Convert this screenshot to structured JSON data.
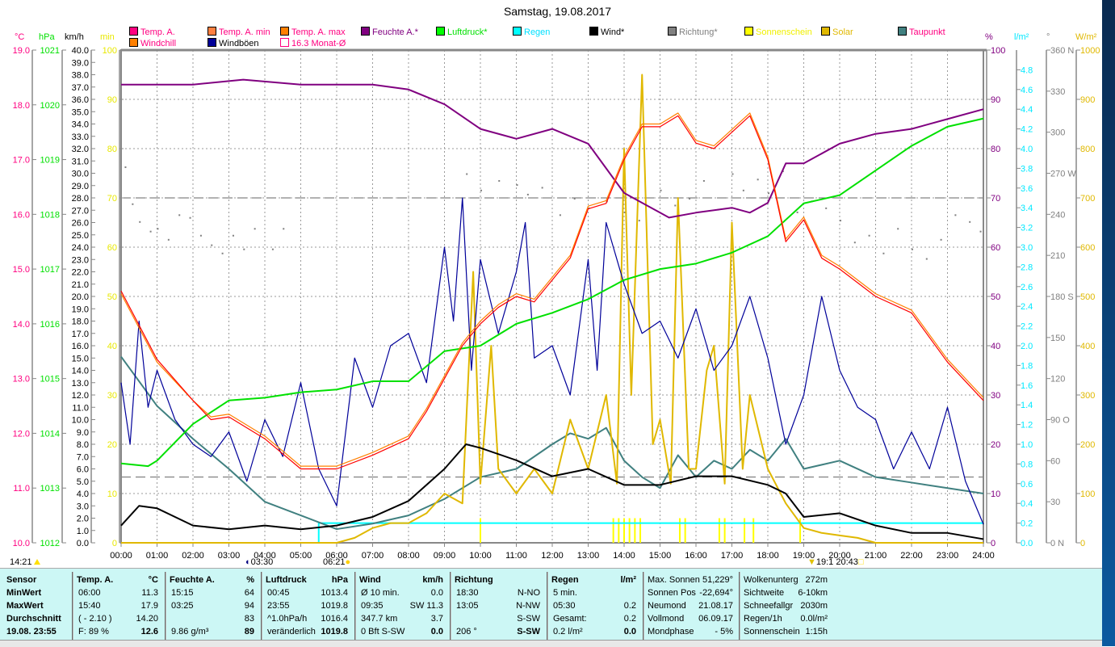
{
  "title": "Samstag, 19.08.2017",
  "units": {
    "temp": "°C",
    "hpa": "hPa",
    "kmh": "km/h",
    "min": "min",
    "pct": "%",
    "rain": "l/m²",
    "deg": "°",
    "wm2": "W/m²"
  },
  "legend": [
    {
      "label": "Temp. A.",
      "swatch": "#ff0080",
      "text": "#ff0080"
    },
    {
      "label": "Temp. A. min",
      "swatch": "#ff8040",
      "text": "#ff0080"
    },
    {
      "label": "Temp. A. max",
      "swatch": "#ff8000",
      "text": "#ff0080"
    },
    {
      "label": "Feuchte A.*",
      "swatch": "#800080",
      "text": "#800080"
    },
    {
      "label": "Luftdruck*",
      "swatch": "#00ff00",
      "text": "#00e000"
    },
    {
      "label": "Regen",
      "swatch": "#00ffff",
      "text": "#00e0ff"
    },
    {
      "label": "Wind*",
      "swatch": "#000000",
      "text": "#000000"
    },
    {
      "label": "Richtung*",
      "swatch": "#808080",
      "text": "#808080"
    },
    {
      "label": "Sonnenschein",
      "swatch": "#ffff00",
      "text": "#f0f000"
    },
    {
      "label": "Solar",
      "swatch": "#e0b800",
      "text": "#e0b800"
    },
    {
      "label": "Taupunkt",
      "swatch": "#408080",
      "text": "#ff0080"
    },
    {
      "label": "Windchill",
      "swatch": "#ff8000",
      "text": "#ff0080"
    },
    {
      "label": "Windböen",
      "swatch": "#000099",
      "text": "#000000"
    },
    {
      "label": "16.3 Monat-Ø",
      "swatch": "#ffffff",
      "text": "#ff0080"
    }
  ],
  "markers": {
    "left_time": "14:21",
    "moon": "03:30",
    "sunrise": "06:21",
    "sunset_a": "19:1",
    "sunset_b": "20:43"
  },
  "chart_data": {
    "type": "line",
    "title": "Samstag, 19.08.2017",
    "x_ticks": [
      "00:00",
      "01:00",
      "02:00",
      "03:00",
      "04:00",
      "05:00",
      "06:00",
      "07:00",
      "08:00",
      "09:00",
      "10:00",
      "11:00",
      "12:00",
      "13:00",
      "14:00",
      "15:00",
      "16:00",
      "17:00",
      "18:00",
      "19:00",
      "20:00",
      "21:00",
      "22:00",
      "23:00",
      "24:00"
    ],
    "xlim": [
      0,
      24
    ],
    "axes": {
      "temp": {
        "min": 10,
        "max": 19,
        "step": 1,
        "dec": 1,
        "color": "#ff0080"
      },
      "hpa": {
        "min": 1012,
        "max": 1021,
        "step": 1,
        "dec": 0,
        "color": "#00e000"
      },
      "kmh": {
        "min": 0,
        "max": 40,
        "step": 1,
        "dec": 1,
        "color": "#000000"
      },
      "min": {
        "min": 0,
        "max": 100,
        "step": 10,
        "dec": 0,
        "color": "#e8e800"
      },
      "pct": {
        "min": 0,
        "max": 100,
        "step": 10,
        "dec": 0,
        "color": "#800080"
      },
      "rain": {
        "min": 0,
        "max": 5,
        "step": 0.2,
        "dec": 1,
        "color": "#00e8ff"
      },
      "deg": {
        "min": 0,
        "max": 360,
        "step": 30,
        "dec": 0,
        "color": "#808080",
        "dirs": {
          "0": "N",
          "90": "O",
          "180": "S",
          "270": "W",
          "360": "N"
        }
      },
      "wm2": {
        "min": 0,
        "max": 1000,
        "step": 100,
        "dec": 0,
        "color": "#e0b800"
      }
    },
    "reference_lines_c": [
      16.3,
      11.2
    ],
    "series": [
      {
        "name": "Temp. A.",
        "axis": "temp",
        "color": "#ff0000",
        "x": [
          0,
          1,
          2,
          2.5,
          3,
          4,
          5,
          6,
          7,
          8,
          8.5,
          9,
          9.5,
          10,
          10.5,
          11,
          11.5,
          12,
          12.5,
          13,
          13.5,
          14,
          14.5,
          15,
          15.5,
          16,
          16.5,
          17,
          17.5,
          18,
          18.5,
          19,
          19.5,
          20,
          21,
          22,
          23,
          24
        ],
        "y": [
          14.6,
          13.35,
          12.6,
          12.25,
          12.3,
          11.9,
          11.35,
          11.35,
          11.6,
          11.9,
          12.4,
          13.0,
          13.6,
          14.0,
          14.3,
          14.5,
          14.4,
          14.8,
          15.2,
          16.1,
          16.2,
          17.0,
          17.6,
          17.6,
          17.8,
          17.3,
          17.2,
          17.5,
          17.8,
          17.0,
          15.5,
          15.9,
          15.2,
          15.0,
          14.5,
          14.2,
          13.3,
          12.6
        ]
      },
      {
        "name": "Temp. A. max",
        "axis": "temp",
        "color": "#ff8000",
        "offset": 0.05,
        "x": [
          0,
          1,
          2,
          2.5,
          3,
          4,
          5,
          6,
          7,
          8,
          8.5,
          9,
          9.5,
          10,
          10.5,
          11,
          11.5,
          12,
          12.5,
          13,
          13.5,
          14,
          14.5,
          15,
          15.5,
          16,
          16.5,
          17,
          17.5,
          18,
          18.5,
          19,
          19.5,
          20,
          21,
          22,
          23,
          24
        ],
        "y": [
          14.55,
          13.3,
          12.6,
          12.3,
          12.35,
          11.95,
          11.4,
          11.4,
          11.65,
          11.95,
          12.45,
          13.05,
          13.65,
          14.05,
          14.35,
          14.55,
          14.45,
          14.85,
          15.25,
          16.15,
          16.25,
          17.05,
          17.65,
          17.65,
          17.85,
          17.35,
          17.25,
          17.55,
          17.85,
          17.05,
          15.55,
          15.95,
          15.25,
          15.05,
          14.55,
          14.25,
          13.35,
          12.65
        ]
      },
      {
        "name": "Feuchte A.",
        "axis": "pct",
        "color": "#800080",
        "x": [
          0,
          2,
          3.4,
          5,
          7,
          8,
          9,
          10,
          11,
          12,
          13,
          13.5,
          14,
          15,
          15.25,
          16,
          17,
          17.5,
          18,
          18.5,
          19,
          20,
          21,
          22,
          23,
          24
        ],
        "y": [
          93,
          93,
          94,
          93,
          93,
          92,
          89,
          84,
          82,
          84,
          81,
          76,
          71,
          67,
          66,
          67,
          68,
          67,
          69,
          77,
          77,
          81,
          83,
          84,
          86,
          88
        ]
      },
      {
        "name": "Luftdruck",
        "axis": "hpa",
        "color": "#00e000",
        "x": [
          0,
          0.75,
          1,
          2,
          3,
          4,
          5,
          6,
          7,
          8,
          9,
          10,
          11,
          12,
          13,
          14,
          15,
          16,
          17,
          18,
          19,
          20,
          21,
          22,
          23,
          24
        ],
        "y": [
          1013.45,
          1013.4,
          1013.5,
          1014.17,
          1014.6,
          1014.65,
          1014.75,
          1014.8,
          1014.95,
          1014.95,
          1015.5,
          1015.6,
          1016.0,
          1016.2,
          1016.45,
          1016.8,
          1017.0,
          1017.1,
          1017.3,
          1017.6,
          1018.2,
          1018.35,
          1018.8,
          1019.25,
          1019.6,
          1019.75
        ]
      },
      {
        "name": "Taupunkt",
        "axis": "temp",
        "color": "#408080",
        "x": [
          0,
          1,
          2,
          3,
          4,
          5,
          6,
          7,
          8,
          9,
          10,
          11,
          12,
          12.5,
          13,
          13.5,
          14,
          14.5,
          15,
          15.5,
          16,
          16.5,
          17,
          17.5,
          18,
          18.5,
          19,
          20,
          21,
          22,
          23,
          24
        ],
        "y": [
          13.4,
          12.5,
          11.9,
          11.35,
          10.75,
          10.5,
          10.25,
          10.35,
          10.5,
          10.8,
          11.2,
          11.35,
          11.8,
          12.0,
          11.9,
          12.1,
          11.5,
          11.2,
          11.0,
          11.6,
          11.2,
          11.5,
          11.35,
          11.7,
          11.5,
          11.9,
          11.35,
          11.5,
          11.2,
          11.1,
          11.0,
          10.9
        ]
      },
      {
        "name": "Wind",
        "axis": "kmh",
        "color": "#000000",
        "x": [
          0,
          0.5,
          1,
          2,
          3,
          4,
          5,
          6,
          7,
          8,
          9,
          9.6,
          10,
          11,
          12,
          13,
          14,
          15,
          16,
          17,
          18,
          18.5,
          19,
          20,
          21,
          22,
          23,
          24
        ],
        "y": [
          1.4,
          3.0,
          2.8,
          1.4,
          1.1,
          1.4,
          1.1,
          1.4,
          2.1,
          3.4,
          6.0,
          8.0,
          7.7,
          6.7,
          5.4,
          6.0,
          4.7,
          4.7,
          5.4,
          5.4,
          4.7,
          4.0,
          2.1,
          2.4,
          1.4,
          0.8,
          0.8,
          0.3
        ]
      },
      {
        "name": "Windböen",
        "axis": "kmh",
        "color": "#000099",
        "x": [
          0,
          0.25,
          0.5,
          0.75,
          1,
          1.5,
          2,
          2.5,
          3,
          3.5,
          4,
          4.5,
          5,
          5.5,
          6,
          6.5,
          7,
          7.5,
          8,
          8.5,
          9,
          9.25,
          9.5,
          9.75,
          10,
          10.5,
          11,
          11.25,
          11.5,
          12,
          12.5,
          13,
          13.25,
          13.5,
          14,
          14.5,
          15,
          15.5,
          16,
          16.5,
          17,
          17.5,
          18,
          18.5,
          19,
          19.5,
          20,
          20.5,
          21,
          21.5,
          22,
          22.5,
          23,
          23.5,
          24
        ],
        "y": [
          13,
          8,
          18,
          11,
          14,
          10,
          8,
          7,
          9,
          5,
          10,
          7,
          13,
          6,
          3,
          15,
          11,
          16,
          17,
          13,
          24,
          18,
          28,
          14,
          23,
          17,
          22,
          26,
          15,
          16,
          12,
          23,
          14,
          26,
          21,
          17,
          18,
          15,
          19,
          14,
          16,
          20,
          15,
          8,
          12,
          20,
          14,
          11,
          10,
          6,
          9,
          6,
          11,
          5,
          1.5
        ]
      },
      {
        "name": "Solar",
        "axis": "wm2",
        "color": "#e0b800",
        "x": [
          0,
          6,
          6.5,
          7,
          7.5,
          8,
          8.5,
          9,
          9.5,
          9.8,
          10,
          10.3,
          10.5,
          11,
          11.5,
          12,
          12.5,
          13,
          13.5,
          13.8,
          14,
          14.2,
          14.5,
          14.8,
          15,
          15.3,
          15.5,
          15.8,
          16,
          16.3,
          16.5,
          16.8,
          17,
          17.3,
          17.5,
          18,
          18.5,
          19,
          19.5,
          20,
          20.5,
          21,
          24
        ],
        "y": [
          0,
          0,
          10,
          30,
          40,
          40,
          60,
          100,
          80,
          550,
          120,
          400,
          150,
          100,
          150,
          100,
          250,
          150,
          300,
          120,
          800,
          300,
          950,
          200,
          250,
          120,
          700,
          150,
          150,
          350,
          400,
          120,
          650,
          150,
          300,
          150,
          80,
          30,
          20,
          15,
          10,
          0,
          0
        ]
      },
      {
        "name": "Regen",
        "axis": "rain",
        "color": "#00ffff",
        "x": [
          0,
          5.5,
          5.5,
          24
        ],
        "y": [
          0,
          0,
          0.2,
          0.2
        ]
      }
    ],
    "sonnenschein": {
      "axis": "min",
      "color": "#ffff00",
      "x": [
        10.0,
        13.7,
        13.85,
        14.0,
        14.15,
        14.3,
        14.45,
        15.55,
        15.7,
        16.65,
        16.8,
        17.35,
        17.6,
        18.9
      ],
      "y": [
        5,
        5,
        5,
        5,
        5,
        5,
        5,
        5,
        5,
        5,
        5,
        5,
        5,
        5
      ]
    },
    "richtung": {
      "axis": "deg",
      "color": "#808080",
      "x": [
        0.1,
        0.3,
        0.5,
        0.8,
        1.0,
        1.3,
        1.6,
        1.9,
        2.2,
        2.5,
        2.8,
        3.1,
        3.4,
        3.7,
        4.2,
        4.5,
        9.6,
        10.0,
        10.5,
        11.0,
        11.3,
        11.7,
        12.2,
        12.6,
        13.0,
        13.5,
        14.0,
        14.4,
        15.0,
        15.4,
        15.8,
        16.2,
        16.6,
        17.0,
        17.3,
        17.7,
        18.0,
        18.4,
        18.8,
        19.2,
        19.6,
        20.0,
        20.4,
        20.8,
        21.2,
        21.6,
        22.0,
        22.4,
        22.8,
        23.2,
        23.6,
        23.9
      ],
      "y": [
        275,
        248,
        235,
        228,
        230,
        222,
        240,
        238,
        225,
        218,
        212,
        225,
        215,
        230,
        215,
        230,
        270,
        258,
        265,
        262,
        255,
        260,
        240,
        252,
        245,
        250,
        242,
        236,
        258,
        247,
        252,
        265,
        244,
        270,
        258,
        266,
        256,
        272,
        242,
        250,
        245,
        236,
        220,
        225,
        212,
        230,
        215,
        208,
        222,
        240,
        235,
        228
      ]
    }
  },
  "table": {
    "sensor": {
      "header": "Sensor",
      "rows": [
        "MinWert",
        "MaxWert",
        "Durchschnitt",
        "19.08. 23:55"
      ]
    },
    "columns": [
      {
        "header": "Temp. A.",
        "unit": "°C",
        "rows": [
          [
            "06:00",
            "11.3"
          ],
          [
            "15:40",
            "17.9"
          ],
          [
            "( - 2.10 )",
            "14.20"
          ],
          [
            "F: 89 %",
            "12.6"
          ]
        ]
      },
      {
        "header": "Feuchte A.",
        "unit": "%",
        "rows": [
          [
            "15:15",
            "64"
          ],
          [
            "03:25",
            "94"
          ],
          [
            "",
            "83"
          ],
          [
            "9.86 g/m³",
            "89"
          ]
        ]
      },
      {
        "header": "Luftdruck",
        "unit": "hPa",
        "rows": [
          [
            "00:45",
            "1013.4"
          ],
          [
            "23:55",
            "1019.8"
          ],
          [
            "^1.0hPa/h",
            "1016.4"
          ],
          [
            "veränderlich",
            "1019.8"
          ]
        ]
      },
      {
        "header": "Wind",
        "unit": "km/h",
        "rows": [
          [
            "Ø 10 min.",
            "0.0"
          ],
          [
            "09:35",
            "SW 11.3"
          ],
          [
            "347.7 km",
            "3.7"
          ],
          [
            "0 Bft S-SW",
            "0.0"
          ]
        ]
      },
      {
        "header": "Richtung",
        "unit": "",
        "rows": [
          [
            "18:30",
            "N-NO"
          ],
          [
            "13:05",
            "N-NW"
          ],
          [
            "",
            "S-SW"
          ],
          [
            "206 °",
            "S-SW"
          ]
        ]
      }
    ],
    "regen": {
      "header": "Regen",
      "unit": "l/m²",
      "rows": [
        [
          "5 min.",
          ""
        ],
        [
          "05:30",
          "0.2"
        ],
        [
          "Gesamt:",
          "0.2"
        ],
        [
          "0.2 l/m²",
          "0.0"
        ]
      ]
    },
    "astro": [
      [
        "Max. Sonnen",
        "51,229°"
      ],
      [
        "Sonnen Pos",
        "-22,694°"
      ],
      [
        "Neumond",
        "21.08.17"
      ],
      [
        "Vollmond",
        "06.09.17"
      ],
      [
        "Mondphase",
        "- 5%"
      ]
    ],
    "extra": [
      [
        "Wolkenunterg",
        "272m"
      ],
      [
        "Sichtweite",
        "6-10km"
      ],
      [
        "Schneefallgr",
        "2030m"
      ],
      [
        "Regen/1h",
        "0.0l/m²"
      ],
      [
        "Sonnenschein",
        "1:15h"
      ]
    ]
  }
}
